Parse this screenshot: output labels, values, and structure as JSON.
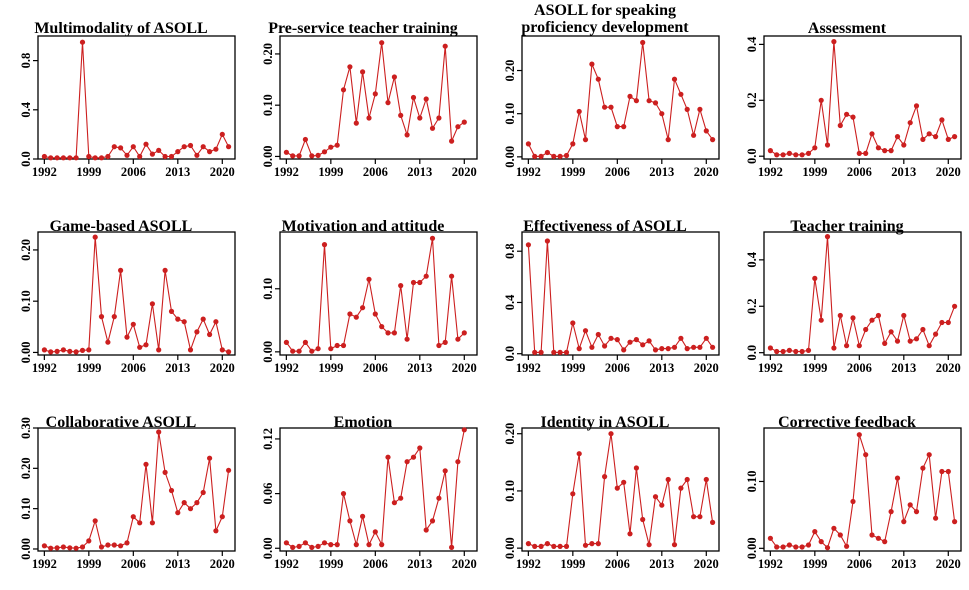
{
  "chart_data": [
    {
      "type": "line",
      "title": "Multimodality of ASOLL",
      "x": [
        1992,
        1993,
        1994,
        1995,
        1996,
        1997,
        1998,
        1999,
        2000,
        2001,
        2002,
        2003,
        2004,
        2005,
        2006,
        2007,
        2008,
        2009,
        2010,
        2011,
        2012,
        2013,
        2014,
        2015,
        2016,
        2017,
        2018,
        2019,
        2020,
        2021
      ],
      "values": [
        0.02,
        0.01,
        0.01,
        0.01,
        0.01,
        0.01,
        0.95,
        0.02,
        0.01,
        0.01,
        0.02,
        0.1,
        0.09,
        0.03,
        0.1,
        0.02,
        0.12,
        0.04,
        0.07,
        0.02,
        0.02,
        0.06,
        0.1,
        0.11,
        0.03,
        0.1,
        0.06,
        0.08,
        0.2,
        0.1
      ],
      "ylim": [
        0,
        1.0
      ],
      "yticks": [
        0.0,
        0.4,
        0.8
      ],
      "ytick_labels": [
        "0.0",
        "0.4",
        "0.8"
      ],
      "xticks": [
        1992,
        1999,
        2006,
        2013,
        2020
      ],
      "xtick_labels": [
        "1992",
        "1999",
        "2006",
        "2013",
        "2020"
      ],
      "color": "#cc1f1f"
    },
    {
      "type": "line",
      "title": "Pre-service teacher training",
      "x": [
        1992,
        1993,
        1994,
        1995,
        1996,
        1997,
        1998,
        1999,
        2000,
        2001,
        2002,
        2003,
        2004,
        2005,
        2006,
        2007,
        2008,
        2009,
        2010,
        2011,
        2012,
        2013,
        2014,
        2015,
        2016,
        2017,
        2018,
        2019,
        2020,
        2021
      ],
      "values": [
        0.008,
        0.001,
        0.001,
        0.033,
        0.001,
        0.002,
        0.009,
        0.018,
        0.022,
        0.13,
        0.175,
        0.065,
        0.165,
        0.075,
        0.122,
        0.222,
        0.105,
        0.155,
        0.08,
        0.042,
        0.115,
        0.075,
        0.112,
        0.055,
        0.075,
        0.215,
        0.03,
        0.058,
        0.067,
        null
      ],
      "ylim": [
        -0.005,
        0.235
      ],
      "yticks": [
        0.0,
        0.1,
        0.2
      ],
      "ytick_labels": [
        "0.00",
        "0.10",
        "0.20"
      ],
      "xticks": [
        1992,
        1999,
        2006,
        2013,
        2020
      ],
      "xtick_labels": [
        "1992",
        "1999",
        "2006",
        "2013",
        "2020"
      ],
      "color": "#cc1f1f"
    },
    {
      "type": "line",
      "title": "ASOLL for speaking proficiency development",
      "x": [
        1992,
        1993,
        1994,
        1995,
        1996,
        1997,
        1998,
        1999,
        2000,
        2001,
        2002,
        2003,
        2004,
        2005,
        2006,
        2007,
        2008,
        2009,
        2010,
        2011,
        2012,
        2013,
        2014,
        2015,
        2016,
        2017,
        2018,
        2019,
        2020,
        2021
      ],
      "values": [
        0.03,
        0.001,
        0.001,
        0.01,
        0.001,
        0.001,
        0.003,
        0.03,
        0.105,
        0.04,
        0.215,
        0.18,
        0.115,
        0.115,
        0.07,
        0.07,
        0.14,
        0.13,
        0.265,
        0.13,
        0.125,
        0.1,
        0.04,
        0.18,
        0.145,
        0.11,
        0.05,
        0.11,
        0.06,
        0.04
      ],
      "ylim": [
        -0.005,
        0.28
      ],
      "yticks": [
        0.0,
        0.1,
        0.2
      ],
      "ytick_labels": [
        "0.00",
        "0.10",
        "0.20"
      ],
      "xticks": [
        1992,
        1999,
        2006,
        2013,
        2020
      ],
      "xtick_labels": [
        "1992",
        "1999",
        "2006",
        "2013",
        "2020"
      ],
      "color": "#cc1f1f"
    },
    {
      "type": "line",
      "title": "Assessment",
      "x": [
        1992,
        1993,
        1994,
        1995,
        1996,
        1997,
        1998,
        1999,
        2000,
        2001,
        2002,
        2003,
        2004,
        2005,
        2006,
        2007,
        2008,
        2009,
        2010,
        2011,
        2012,
        2013,
        2014,
        2015,
        2016,
        2017,
        2018,
        2019,
        2020,
        2021
      ],
      "values": [
        0.02,
        0.005,
        0.005,
        0.01,
        0.005,
        0.005,
        0.01,
        0.03,
        0.2,
        0.04,
        0.41,
        0.11,
        0.15,
        0.14,
        0.01,
        0.01,
        0.08,
        0.03,
        0.02,
        0.02,
        0.07,
        0.04,
        0.12,
        0.18,
        0.06,
        0.08,
        0.07,
        0.13,
        0.06,
        0.07
      ],
      "ylim": [
        -0.01,
        0.43
      ],
      "yticks": [
        0.0,
        0.2,
        0.4
      ],
      "ytick_labels": [
        "0.0",
        "0.2",
        "0.4"
      ],
      "xticks": [
        1992,
        1999,
        2006,
        2013,
        2020
      ],
      "xtick_labels": [
        "1992",
        "1999",
        "2006",
        "2013",
        "2020"
      ],
      "color": "#cc1f1f"
    },
    {
      "type": "line",
      "title": "Game-based ASOLL",
      "x": [
        1992,
        1993,
        1994,
        1995,
        1996,
        1997,
        1998,
        1999,
        2000,
        2001,
        2002,
        2003,
        2004,
        2005,
        2006,
        2007,
        2008,
        2009,
        2010,
        2011,
        2012,
        2013,
        2014,
        2015,
        2016,
        2017,
        2018,
        2019,
        2020,
        2021
      ],
      "values": [
        0.005,
        0.001,
        0.002,
        0.005,
        0.002,
        0.001,
        0.004,
        0.005,
        0.225,
        0.07,
        0.02,
        0.07,
        0.16,
        0.03,
        0.055,
        0.01,
        0.015,
        0.095,
        0.005,
        0.16,
        0.08,
        0.065,
        0.06,
        0.005,
        0.04,
        0.065,
        0.035,
        0.06,
        0.005,
        0.001
      ],
      "ylim": [
        -0.005,
        0.235
      ],
      "yticks": [
        0.0,
        0.1,
        0.2
      ],
      "ytick_labels": [
        "0.00",
        "0.10",
        "0.20"
      ],
      "xticks": [
        1992,
        1999,
        2006,
        2013,
        2020
      ],
      "xtick_labels": [
        "1992",
        "1999",
        "2006",
        "2013",
        "2020"
      ],
      "color": "#cc1f1f"
    },
    {
      "type": "line",
      "title": "Motivation and attitude",
      "x": [
        1992,
        1993,
        1994,
        1995,
        1996,
        1997,
        1998,
        1999,
        2000,
        2001,
        2002,
        2003,
        2004,
        2005,
        2006,
        2007,
        2008,
        2009,
        2010,
        2011,
        2012,
        2013,
        2014,
        2015,
        2016,
        2017,
        2018,
        2019,
        2020,
        2021
      ],
      "values": [
        0.015,
        0.001,
        0.001,
        0.015,
        0.001,
        0.005,
        0.17,
        0.005,
        0.01,
        0.01,
        0.06,
        0.055,
        0.07,
        0.115,
        0.06,
        0.04,
        0.03,
        0.03,
        0.105,
        0.02,
        0.11,
        0.11,
        0.12,
        0.18,
        0.01,
        0.015,
        0.12,
        0.02,
        0.03,
        null
      ],
      "ylim": [
        -0.005,
        0.19
      ],
      "yticks": [
        0.0,
        0.1
      ],
      "ytick_labels": [
        "0.00",
        "0.10"
      ],
      "xticks": [
        1992,
        1999,
        2006,
        2013,
        2020
      ],
      "xtick_labels": [
        "1992",
        "1999",
        "2006",
        "2013",
        "2020"
      ],
      "color": "#cc1f1f"
    },
    {
      "type": "line",
      "title": "Effectiveness of ASOLL",
      "x": [
        1992,
        1993,
        1994,
        1995,
        1996,
        1997,
        1998,
        1999,
        2000,
        2001,
        2002,
        2003,
        2004,
        2005,
        2006,
        2007,
        2008,
        2009,
        2010,
        2011,
        2012,
        2013,
        2014,
        2015,
        2016,
        2017,
        2018,
        2019,
        2020,
        2021
      ],
      "values": [
        0.85,
        0.01,
        0.01,
        0.88,
        0.01,
        0.01,
        0.01,
        0.24,
        0.04,
        0.18,
        0.05,
        0.15,
        0.06,
        0.12,
        0.11,
        0.03,
        0.09,
        0.11,
        0.07,
        0.1,
        0.03,
        0.04,
        0.04,
        0.05,
        0.12,
        0.04,
        0.05,
        0.05,
        0.12,
        0.05
      ],
      "ylim": [
        -0.01,
        0.95
      ],
      "yticks": [
        0.0,
        0.4,
        0.8
      ],
      "ytick_labels": [
        "0.0",
        "0.4",
        "0.8"
      ],
      "xticks": [
        1992,
        1999,
        2006,
        2013,
        2020
      ],
      "xtick_labels": [
        "1992",
        "1999",
        "2006",
        "2013",
        "2020"
      ],
      "color": "#cc1f1f"
    },
    {
      "type": "line",
      "title": "Teacher training",
      "x": [
        1992,
        1993,
        1994,
        1995,
        1996,
        1997,
        1998,
        1999,
        2000,
        2001,
        2002,
        2003,
        2004,
        2005,
        2006,
        2007,
        2008,
        2009,
        2010,
        2011,
        2012,
        2013,
        2014,
        2015,
        2016,
        2017,
        2018,
        2019,
        2020,
        2021
      ],
      "values": [
        0.02,
        0.005,
        0.005,
        0.01,
        0.005,
        0.005,
        0.01,
        0.32,
        0.14,
        0.5,
        0.02,
        0.16,
        0.03,
        0.15,
        0.03,
        0.1,
        0.14,
        0.16,
        0.04,
        0.09,
        0.05,
        0.16,
        0.05,
        0.06,
        0.1,
        0.03,
        0.08,
        0.13,
        0.13,
        0.2
      ],
      "ylim": [
        -0.01,
        0.52
      ],
      "yticks": [
        0.0,
        0.2,
        0.4
      ],
      "ytick_labels": [
        "0.0",
        "0.2",
        "0.4"
      ],
      "xticks": [
        1992,
        1999,
        2006,
        2013,
        2020
      ],
      "xtick_labels": [
        "1992",
        "1999",
        "2006",
        "2013",
        "2020"
      ],
      "color": "#cc1f1f"
    },
    {
      "type": "line",
      "title": "Collaborative ASOLL",
      "x": [
        1992,
        1993,
        1994,
        1995,
        1996,
        1997,
        1998,
        1999,
        2000,
        2001,
        2002,
        2003,
        2004,
        2005,
        2006,
        2007,
        2008,
        2009,
        2010,
        2011,
        2012,
        2013,
        2014,
        2015,
        2016,
        2017,
        2018,
        2019,
        2020,
        2021
      ],
      "values": [
        0.008,
        0.002,
        0.003,
        0.005,
        0.003,
        0.002,
        0.005,
        0.02,
        0.07,
        0.005,
        0.01,
        0.01,
        0.008,
        0.015,
        0.08,
        0.065,
        0.21,
        0.065,
        0.29,
        0.19,
        0.145,
        0.09,
        0.115,
        0.1,
        0.115,
        0.14,
        0.225,
        0.045,
        0.08,
        0.195
      ],
      "ylim": [
        -0.005,
        0.3
      ],
      "yticks": [
        0.0,
        0.1,
        0.2,
        0.3
      ],
      "ytick_labels": [
        "0.00",
        "0.10",
        "0.20",
        "0.30"
      ],
      "xticks": [
        1992,
        1999,
        2006,
        2013,
        2020
      ],
      "xtick_labels": [
        "1992",
        "1999",
        "2006",
        "2013",
        "2020"
      ],
      "color": "#cc1f1f"
    },
    {
      "type": "line",
      "title": "Emotion",
      "x": [
        1992,
        1993,
        1994,
        1995,
        1996,
        1997,
        1998,
        1999,
        2000,
        2001,
        2002,
        2003,
        2004,
        2005,
        2006,
        2007,
        2008,
        2009,
        2010,
        2011,
        2012,
        2013,
        2014,
        2015,
        2016,
        2017,
        2018,
        2019,
        2020,
        2021
      ],
      "values": [
        0.006,
        0.001,
        0.002,
        0.006,
        0.001,
        0.002,
        0.006,
        0.004,
        0.004,
        0.06,
        0.03,
        0.004,
        0.035,
        0.004,
        0.018,
        0.004,
        0.1,
        0.05,
        0.055,
        0.095,
        0.1,
        0.11,
        0.02,
        0.03,
        0.055,
        0.085,
        0.001,
        0.095,
        0.13,
        null
      ],
      "ylim": [
        -0.003,
        0.132
      ],
      "yticks": [
        0.0,
        0.06,
        0.12
      ],
      "ytick_labels": [
        "0.00",
        "0.06",
        "0.12"
      ],
      "xticks": [
        1992,
        1999,
        2006,
        2013,
        2020
      ],
      "xtick_labels": [
        "1992",
        "1999",
        "2006",
        "2013",
        "2020"
      ],
      "color": "#cc1f1f"
    },
    {
      "type": "line",
      "title": "Identity in ASOLL",
      "x": [
        1992,
        1993,
        1994,
        1995,
        1996,
        1997,
        1998,
        1999,
        2000,
        2001,
        2002,
        2003,
        2004,
        2005,
        2006,
        2007,
        2008,
        2009,
        2010,
        2011,
        2012,
        2013,
        2014,
        2015,
        2016,
        2017,
        2018,
        2019,
        2020,
        2021
      ],
      "values": [
        0.008,
        0.003,
        0.003,
        0.008,
        0.003,
        0.003,
        0.003,
        0.095,
        0.165,
        0.005,
        0.008,
        0.008,
        0.125,
        0.2,
        0.105,
        0.115,
        0.025,
        0.14,
        0.05,
        0.006,
        0.09,
        0.075,
        0.12,
        0.006,
        0.105,
        0.12,
        0.055,
        0.055,
        0.12,
        0.045
      ],
      "ylim": [
        -0.005,
        0.21
      ],
      "yticks": [
        0.0,
        0.1,
        0.2
      ],
      "ytick_labels": [
        "0.00",
        "0.10",
        "0.20"
      ],
      "xticks": [
        1992,
        1999,
        2006,
        2013,
        2020
      ],
      "xtick_labels": [
        "1992",
        "1999",
        "2006",
        "2013",
        "2020"
      ],
      "color": "#cc1f1f"
    },
    {
      "type": "line",
      "title": "Corrective feedback",
      "x": [
        1992,
        1993,
        1994,
        1995,
        1996,
        1997,
        1998,
        1999,
        2000,
        2001,
        2002,
        2003,
        2004,
        2005,
        2006,
        2007,
        2008,
        2009,
        2010,
        2011,
        2012,
        2013,
        2014,
        2015,
        2016,
        2017,
        2018,
        2019,
        2020,
        2021
      ],
      "values": [
        0.015,
        0.002,
        0.002,
        0.005,
        0.002,
        0.002,
        0.005,
        0.025,
        0.01,
        0.001,
        0.03,
        0.02,
        0.003,
        0.07,
        0.17,
        0.14,
        0.02,
        0.015,
        0.01,
        0.055,
        0.105,
        0.04,
        0.065,
        0.055,
        0.12,
        0.14,
        0.045,
        0.115,
        0.115,
        0.04
      ],
      "ylim": [
        -0.004,
        0.18
      ],
      "yticks": [
        0.0,
        0.1
      ],
      "ytick_labels": [
        "0.00",
        "0.10"
      ],
      "xticks": [
        1992,
        1999,
        2006,
        2013,
        2020
      ],
      "xtick_labels": [
        "1992",
        "1999",
        "2006",
        "2013",
        "2020"
      ],
      "color": "#cc1f1f"
    }
  ]
}
